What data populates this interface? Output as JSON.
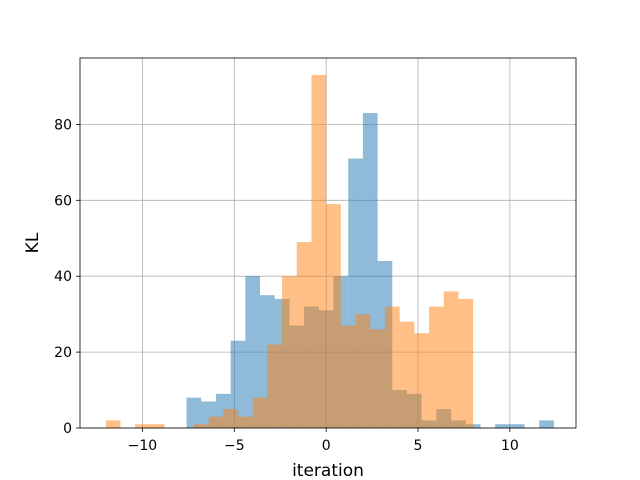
{
  "chart_data": {
    "type": "bar",
    "xlabel": "iteration",
    "ylabel": "KL",
    "xlim": [
      -13.4,
      13.6
    ],
    "ylim": [
      0,
      97.5
    ],
    "xticks": [
      -10,
      -5,
      0,
      5,
      10
    ],
    "xtick_labels": [
      "−10",
      "−5",
      "0",
      "5",
      "10"
    ],
    "yticks": [
      0,
      20,
      40,
      60,
      80
    ],
    "ytick_labels": [
      "0",
      "20",
      "40",
      "60",
      "80"
    ],
    "grid": true,
    "bin_width": 0.8,
    "series": [
      {
        "color": "#1f77b4",
        "opacity": 0.5,
        "bins": [
          {
            "x0": -7.6,
            "count": 8
          },
          {
            "x0": -6.8,
            "count": 7
          },
          {
            "x0": -6.0,
            "count": 9
          },
          {
            "x0": -5.2,
            "count": 23
          },
          {
            "x0": -4.4,
            "count": 40
          },
          {
            "x0": -3.6,
            "count": 35
          },
          {
            "x0": -2.8,
            "count": 34
          },
          {
            "x0": -2.0,
            "count": 27
          },
          {
            "x0": -1.2,
            "count": 32
          },
          {
            "x0": -0.4,
            "count": 31
          },
          {
            "x0": 0.4,
            "count": 40
          },
          {
            "x0": 1.2,
            "count": 71
          },
          {
            "x0": 2.0,
            "count": 83
          },
          {
            "x0": 2.8,
            "count": 44
          },
          {
            "x0": 3.6,
            "count": 10
          },
          {
            "x0": 4.4,
            "count": 9
          },
          {
            "x0": 5.2,
            "count": 2
          },
          {
            "x0": 6.0,
            "count": 5
          },
          {
            "x0": 6.8,
            "count": 2
          },
          {
            "x0": 7.6,
            "count": 1
          },
          {
            "x0": 9.2,
            "count": 1
          },
          {
            "x0": 10.0,
            "count": 1
          },
          {
            "x0": 11.6,
            "count": 2
          }
        ]
      },
      {
        "color": "#ff7f0e",
        "opacity": 0.5,
        "bins": [
          {
            "x0": -12.0,
            "count": 2
          },
          {
            "x0": -10.4,
            "count": 1
          },
          {
            "x0": -9.6,
            "count": 1
          },
          {
            "x0": -7.2,
            "count": 1
          },
          {
            "x0": -6.4,
            "count": 3
          },
          {
            "x0": -5.6,
            "count": 5
          },
          {
            "x0": -4.8,
            "count": 3
          },
          {
            "x0": -4.0,
            "count": 8
          },
          {
            "x0": -3.2,
            "count": 22
          },
          {
            "x0": -2.4,
            "count": 40
          },
          {
            "x0": -1.6,
            "count": 49
          },
          {
            "x0": -0.8,
            "count": 93
          },
          {
            "x0": 0.0,
            "count": 59
          },
          {
            "x0": 0.8,
            "count": 27
          },
          {
            "x0": 1.6,
            "count": 30
          },
          {
            "x0": 2.4,
            "count": 26
          },
          {
            "x0": 3.2,
            "count": 32
          },
          {
            "x0": 4.0,
            "count": 28
          },
          {
            "x0": 4.8,
            "count": 25
          },
          {
            "x0": 5.6,
            "count": 32
          },
          {
            "x0": 6.4,
            "count": 36
          },
          {
            "x0": 7.2,
            "count": 34
          }
        ]
      }
    ]
  }
}
